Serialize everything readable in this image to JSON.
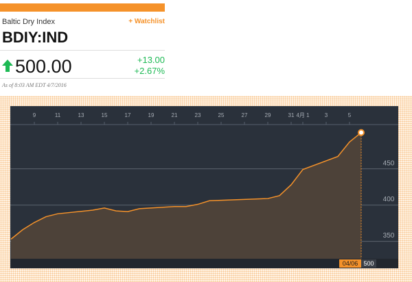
{
  "header": {
    "name": "Baltic Dry Index",
    "watchlist": "+ Watchlist",
    "ticker": "BDIY:IND",
    "price": "500.00",
    "change": "+13.00",
    "change_pct": "+2.67%",
    "as_of": "As of 8:03 AM EDT 4/7/2016"
  },
  "chart_data": {
    "type": "area",
    "x": [
      "03/07",
      "03/08",
      "03/09",
      "03/10",
      "03/11",
      "03/14",
      "03/15",
      "03/16",
      "03/17",
      "03/18",
      "03/21",
      "03/22",
      "03/23",
      "03/24",
      "03/29",
      "03/30",
      "03/31",
      "04/01",
      "04/04",
      "04/05",
      "04/06"
    ],
    "values": [
      353,
      366,
      376,
      384,
      388,
      393,
      396,
      392,
      391,
      395,
      398,
      398,
      401,
      406,
      409,
      413,
      428,
      449,
      467,
      487,
      500
    ],
    "color": "#f5922a",
    "xlim": [
      "03/07",
      "04/09"
    ],
    "xticks": [
      {
        "value": "03/09",
        "label": "9"
      },
      {
        "value": "03/11",
        "label": "11"
      },
      {
        "value": "03/13",
        "label": "13"
      },
      {
        "value": "03/15",
        "label": "15"
      },
      {
        "value": "03/17",
        "label": "17"
      },
      {
        "value": "03/19",
        "label": "19"
      },
      {
        "value": "03/21",
        "label": "21"
      },
      {
        "value": "03/23",
        "label": "23"
      },
      {
        "value": "03/25",
        "label": "25"
      },
      {
        "value": "03/27",
        "label": "27"
      },
      {
        "value": "03/29",
        "label": "29"
      },
      {
        "value": "03/31",
        "label": "31"
      },
      {
        "value": "04/01",
        "label": "4月 1"
      },
      {
        "value": "04/03",
        "label": "3"
      },
      {
        "value": "04/05",
        "label": "5"
      }
    ],
    "ylim": [
      326,
      511
    ],
    "yticks": [
      350,
      400,
      450
    ],
    "grid": true
  }
}
